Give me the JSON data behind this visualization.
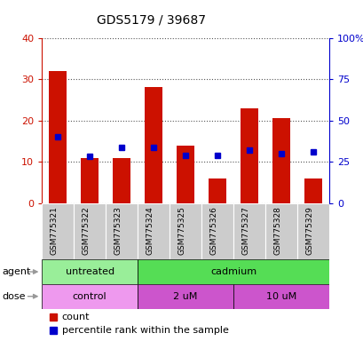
{
  "title": "GDS5179 / 39687",
  "samples": [
    "GSM775321",
    "GSM775322",
    "GSM775323",
    "GSM775324",
    "GSM775325",
    "GSM775326",
    "GSM775327",
    "GSM775328",
    "GSM775329"
  ],
  "counts": [
    32,
    11,
    11,
    28,
    14,
    6,
    23,
    20.5,
    6
  ],
  "percentile_ranks": [
    40,
    28.5,
    34,
    34,
    29,
    29,
    32,
    30,
    31
  ],
  "bar_color": "#cc1100",
  "dot_color": "#0000cc",
  "left_ylim": [
    0,
    40
  ],
  "right_ylim": [
    0,
    100
  ],
  "left_yticks": [
    0,
    10,
    20,
    30,
    40
  ],
  "right_yticks": [
    0,
    25,
    50,
    75,
    100
  ],
  "right_yticklabels": [
    "0",
    "25",
    "50",
    "75",
    "100%"
  ],
  "agent_labels": [
    "untreated",
    "cadmium"
  ],
  "agent_color_light": "#99ee99",
  "agent_color_bright": "#55dd55",
  "dose_labels": [
    "control",
    "2 uM",
    "10 uM"
  ],
  "dose_color_light": "#ee99ee",
  "dose_color_bright": "#cc55cc",
  "grid_color": "#555555",
  "title_color": "#000000",
  "left_axis_color": "#cc1100",
  "right_axis_color": "#0000cc",
  "legend_count_label": "count",
  "legend_pct_label": "percentile rank within the sample",
  "xticklabel_bg": "#cccccc",
  "chart_bg": "#ffffff"
}
